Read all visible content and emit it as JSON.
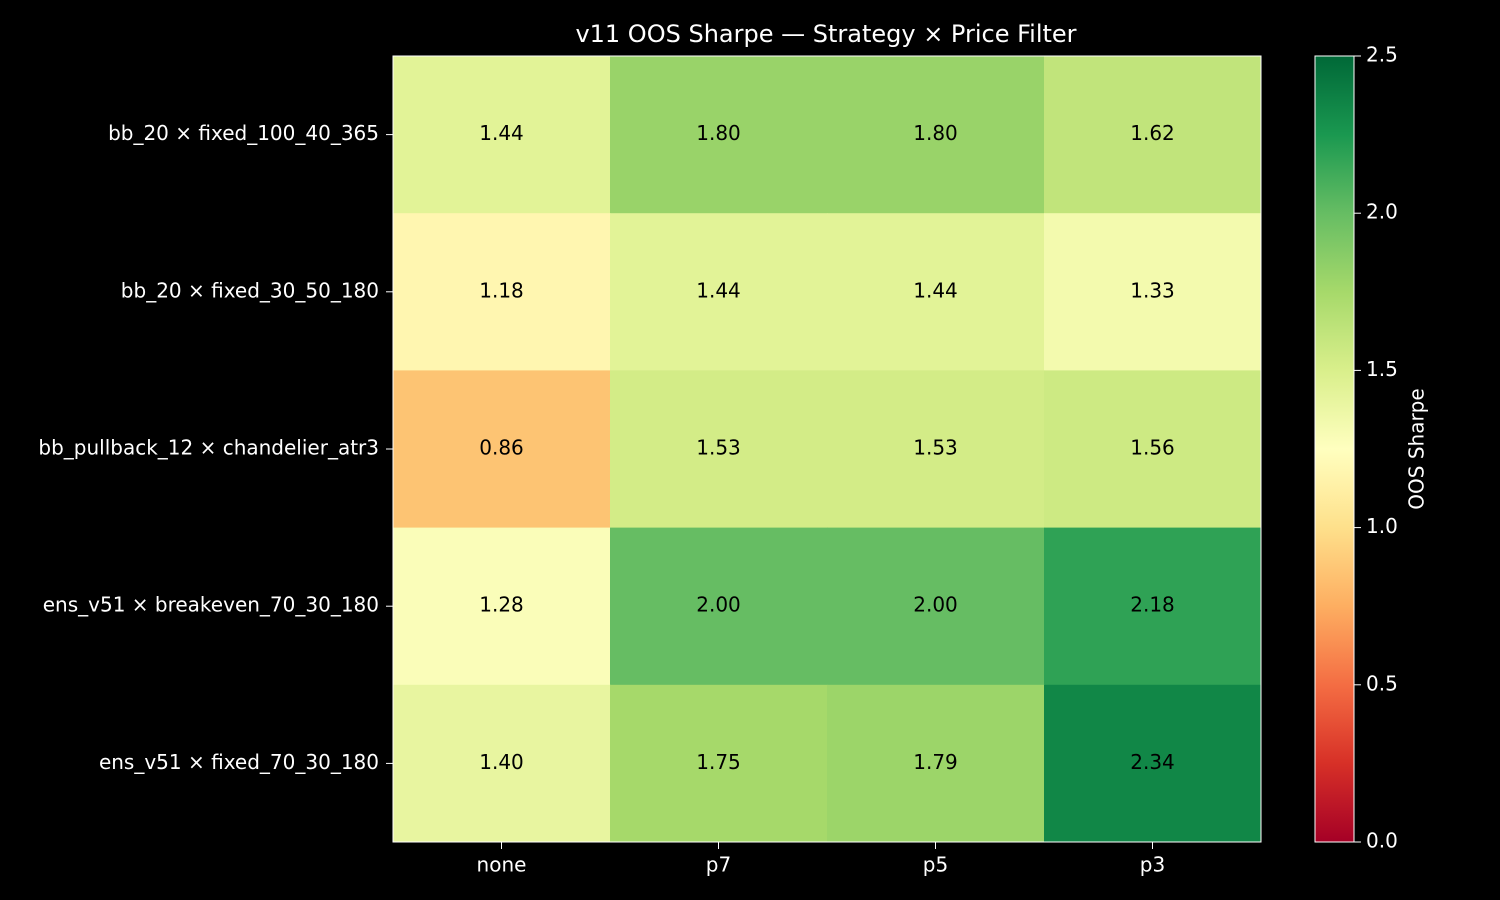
{
  "chart_data": {
    "type": "heatmap",
    "title": "v11 OOS Sharpe — Strategy × Price Filter",
    "x": [
      "none",
      "p7",
      "p5",
      "p3"
    ],
    "y": [
      "bb_20 × fixed_100_40_365",
      "bb_20 × fixed_30_50_180",
      "bb_pullback_12 × chandelier_atr3",
      "ens_v51 × breakeven_70_30_180",
      "ens_v51 × fixed_70_30_180"
    ],
    "values": [
      [
        1.44,
        1.8,
        1.8,
        1.62
      ],
      [
        1.18,
        1.44,
        1.44,
        1.33
      ],
      [
        0.86,
        1.53,
        1.53,
        1.56
      ],
      [
        1.28,
        2.0,
        2.0,
        2.18
      ],
      [
        1.4,
        1.75,
        1.79,
        2.34
      ]
    ],
    "value_labels": [
      [
        "1.44",
        "1.80",
        "1.80",
        "1.62"
      ],
      [
        "1.18",
        "1.44",
        "1.44",
        "1.33"
      ],
      [
        "0.86",
        "1.53",
        "1.53",
        "1.56"
      ],
      [
        "1.28",
        "2.00",
        "2.00",
        "2.18"
      ],
      [
        "1.40",
        "1.75",
        "1.79",
        "2.34"
      ]
    ],
    "colormap": "RdYlGn",
    "clim": [
      0,
      2.5
    ],
    "cticks": [
      {
        "value": 0,
        "label": "0.0"
      },
      0.5,
      {
        "value": 1,
        "label": "1.0"
      },
      1.5,
      {
        "value": 2,
        "label": "2.0"
      },
      2.5
    ],
    "colorbar_label": "OOS Sharpe"
  }
}
